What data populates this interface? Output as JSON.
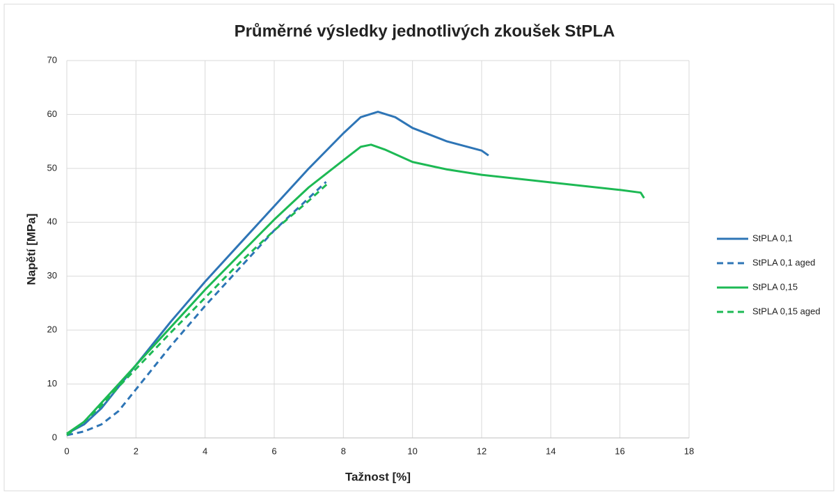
{
  "chart_data": {
    "type": "line",
    "title": "Průměrné výsledky jednotlivých zkoušek StPLA",
    "x_label": "Tažnost [%]",
    "y_label": "Napětí [MPa]",
    "xlim": [
      0,
      18
    ],
    "xticks": [
      0,
      2,
      4,
      6,
      8,
      10,
      12,
      14,
      16,
      18
    ],
    "ylim": [
      0,
      70
    ],
    "yticks": [
      0,
      10,
      20,
      30,
      40,
      50,
      60,
      70
    ],
    "grid": true,
    "legend": "right",
    "series": [
      {
        "name": "StPLA 0,1",
        "color": "#2e75b6",
        "dashed": false,
        "x": [
          0,
          0.5,
          1,
          1.5,
          2,
          3,
          4,
          5,
          6,
          7,
          8,
          8.5,
          9,
          9.5,
          10,
          11,
          12,
          12.2
        ],
        "values": [
          0.8,
          2.5,
          5.5,
          9.5,
          13.5,
          21.5,
          29,
          36,
          43,
          50,
          56.5,
          59.5,
          60.5,
          59.5,
          57.5,
          55,
          53.3,
          52.4
        ]
      },
      {
        "name": "StPLA 0,1 aged",
        "color": "#2e75b6",
        "dashed": true,
        "x": [
          0,
          0.5,
          1,
          1.5,
          2,
          3,
          4,
          5,
          6,
          7,
          7.5
        ],
        "values": [
          0.5,
          1.2,
          2.5,
          5,
          9,
          17,
          24.5,
          31.5,
          38.5,
          44.5,
          47.5
        ]
      },
      {
        "name": "StPLA 0,15",
        "color": "#1db954",
        "dashed": false,
        "x": [
          0,
          0.5,
          1,
          1.5,
          2,
          3,
          4,
          5,
          6,
          7,
          8,
          8.5,
          8.8,
          9.2,
          10,
          11,
          12,
          14,
          16,
          16.6,
          16.7
        ],
        "values": [
          0.8,
          3,
          6.5,
          10,
          13.5,
          20.5,
          27.5,
          34,
          40.5,
          46.5,
          51.5,
          54,
          54.4,
          53.5,
          51.2,
          49.8,
          48.8,
          47.4,
          46,
          45.5,
          44.5
        ]
      },
      {
        "name": "StPLA 0,15 aged",
        "color": "#1db954",
        "dashed": true,
        "x": [
          0,
          0.5,
          1,
          1.5,
          2,
          3,
          4,
          5,
          6,
          7,
          7.6
        ],
        "values": [
          0.5,
          3,
          6,
          9.5,
          12.8,
          19.5,
          26,
          32.5,
          38.5,
          44,
          47.5
        ]
      }
    ]
  }
}
